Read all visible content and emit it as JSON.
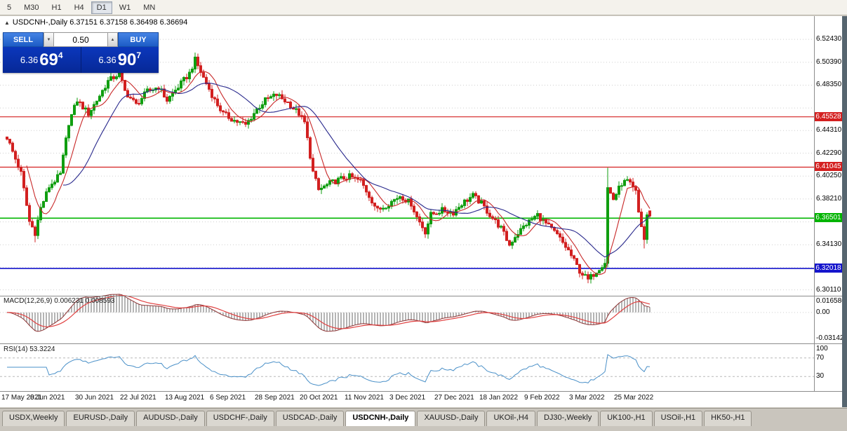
{
  "toolbar": {
    "timeframes": [
      {
        "label": "5"
      },
      {
        "label": "M30"
      },
      {
        "label": "H1"
      },
      {
        "label": "H4"
      },
      {
        "label": "D1",
        "active": true
      },
      {
        "label": "W1"
      },
      {
        "label": "MN"
      }
    ]
  },
  "chart": {
    "title_line": "USDCNH-,Daily  6.37151 6.37158 6.36498 6.36694"
  },
  "icons": {
    "collapse": "▲",
    "volume_down": "▼",
    "volume_up": "▲"
  },
  "trade_panel": {
    "sell_label": "SELL",
    "buy_label": "BUY",
    "volume": "0.50",
    "sell_price": {
      "prefix": "6.36",
      "big": "69",
      "sup": "4"
    },
    "buy_price": {
      "prefix": "6.36",
      "big": "90",
      "sup": "7"
    }
  },
  "tabs": [
    {
      "label": "USDX,Weekly"
    },
    {
      "label": "EURUSD-,Daily"
    },
    {
      "label": "AUDUSD-,Daily"
    },
    {
      "label": "USDCHF-,Daily"
    },
    {
      "label": "USDCAD-,Daily"
    },
    {
      "label": "USDCNH-,Daily",
      "active": true
    },
    {
      "label": "XAUUSD-,Daily"
    },
    {
      "label": "UKOil-,H4"
    },
    {
      "label": "DJ30-,Weekly"
    },
    {
      "label": "UK100-,H1"
    },
    {
      "label": "USOil-,H1"
    },
    {
      "label": "HK50-,H1"
    }
  ],
  "colors": {
    "up": "#109e10",
    "down": "#d22020",
    "ma_fast": "#c82828",
    "ma_slow": "#28288c",
    "macd_hist": "#b4b4b4",
    "macd_main": "#8c3232",
    "macd_signal": "#e04040",
    "rsi": "#4a90c8",
    "grid": "#cfcfcf",
    "separator": "#8c8c8c"
  },
  "chart_data": {
    "type": "candlestick",
    "title": "USDCNH-,Daily",
    "last_ohlc": {
      "open": 6.37151,
      "high": 6.37158,
      "low": 6.36498,
      "close": 6.36694
    },
    "bars": 230,
    "bar_label_step": 16,
    "x_labels": [
      "17 May 2021",
      "8 Jun 2021",
      "30 Jun 2021",
      "22 Jul 2021",
      "13 Aug 2021",
      "6 Sep 2021",
      "28 Sep 2021",
      "20 Oct 2021",
      "11 Nov 2021",
      "3 Dec 2021",
      "27 Dec 2021",
      "18 Jan 2022",
      "9 Feb 2022",
      "3 Mar 2022",
      "25 Mar 2022"
    ],
    "y_range": [
      6.2965,
      6.545
    ],
    "y_grid": [
      6.5243,
      6.5039,
      6.4835,
      6.4631,
      6.4431,
      6.4229,
      6.4025,
      6.3821,
      6.3617,
      6.3413,
      6.3211,
      6.3011
    ],
    "y_tick_labels": [
      6.5243,
      6.5039,
      6.4835,
      6.4431,
      6.4229,
      6.4025,
      6.3821,
      6.3413,
      6.3011
    ],
    "close_anchors": [
      [
        0,
        6.437
      ],
      [
        5,
        6.405
      ],
      [
        8,
        6.362
      ],
      [
        10,
        6.352
      ],
      [
        12,
        6.374
      ],
      [
        15,
        6.393
      ],
      [
        19,
        6.404
      ],
      [
        22,
        6.45
      ],
      [
        25,
        6.47
      ],
      [
        29,
        6.458
      ],
      [
        32,
        6.47
      ],
      [
        36,
        6.487
      ],
      [
        40,
        6.494
      ],
      [
        42,
        6.478
      ],
      [
        46,
        6.466
      ],
      [
        50,
        6.478
      ],
      [
        54,
        6.482
      ],
      [
        57,
        6.47
      ],
      [
        61,
        6.482
      ],
      [
        65,
        6.494
      ],
      [
        67,
        6.506
      ],
      [
        70,
        6.49
      ],
      [
        74,
        6.47
      ],
      [
        77,
        6.458
      ],
      [
        81,
        6.452
      ],
      [
        85,
        6.448
      ],
      [
        89,
        6.462
      ],
      [
        92,
        6.47
      ],
      [
        96,
        6.475
      ],
      [
        100,
        6.468
      ],
      [
        104,
        6.458
      ],
      [
        106,
        6.45
      ],
      [
        109,
        6.406
      ],
      [
        111,
        6.39
      ],
      [
        115,
        6.396
      ],
      [
        119,
        6.4
      ],
      [
        122,
        6.402
      ],
      [
        126,
        6.398
      ],
      [
        129,
        6.385
      ],
      [
        132,
        6.372
      ],
      [
        136,
        6.378
      ],
      [
        140,
        6.385
      ],
      [
        144,
        6.378
      ],
      [
        146,
        6.366
      ],
      [
        149,
        6.353
      ],
      [
        151,
        6.368
      ],
      [
        155,
        6.372
      ],
      [
        159,
        6.37
      ],
      [
        162,
        6.378
      ],
      [
        166,
        6.385
      ],
      [
        169,
        6.378
      ],
      [
        172,
        6.368
      ],
      [
        176,
        6.356
      ],
      [
        179,
        6.341
      ],
      [
        181,
        6.349
      ],
      [
        185,
        6.36
      ],
      [
        189,
        6.368
      ],
      [
        192,
        6.36
      ],
      [
        196,
        6.35
      ],
      [
        200,
        6.336
      ],
      [
        204,
        6.318
      ],
      [
        207,
        6.31
      ],
      [
        210,
        6.318
      ],
      [
        213,
        6.326
      ],
      [
        214,
        6.392
      ],
      [
        216,
        6.382
      ],
      [
        219,
        6.396
      ],
      [
        221,
        6.398
      ],
      [
        224,
        6.388
      ],
      [
        225,
        6.37
      ],
      [
        227,
        6.346
      ],
      [
        228,
        6.368
      ],
      [
        229,
        6.367
      ]
    ],
    "wick_overrides": [
      {
        "bar": 67,
        "high": 6.5125
      },
      {
        "bar": 10,
        "low": 6.3435
      },
      {
        "bar": 214,
        "high": 6.4099
      },
      {
        "bar": 227,
        "low": 6.338
      }
    ],
    "levels": [
      {
        "price": 6.45528,
        "label": "6.45528",
        "color": "#d42020",
        "width": 1.2
      },
      {
        "price": 6.41045,
        "label": "6.41045",
        "color": "#d42020",
        "width": 1.2
      },
      {
        "price": 6.36501,
        "label": "6.36501",
        "color": "#00b400",
        "width": 1.6
      },
      {
        "price": 6.32018,
        "label": "6.32018",
        "color": "#1414cc",
        "width": 1.6
      }
    ],
    "moving_averages": [
      {
        "period": 8,
        "color": "#c82828"
      },
      {
        "period": 21,
        "color": "#28288c"
      }
    ],
    "indicators": {
      "macd": {
        "params": [
          12,
          26,
          9
        ],
        "display": "MACD(12,26,9) 0.006231 0.008593",
        "values": [
          0.006231,
          0.008593
        ],
        "y_ticks": [
          {
            "label": "0.016586",
            "value": 0.0166
          },
          {
            "label": "0.00",
            "value": 0
          },
          {
            "label": "-0.03142",
            "value": -0.0314
          }
        ],
        "y_range": [
          -0.0314,
          0.0166
        ]
      },
      "rsi": {
        "period": 14,
        "value": 53.3224,
        "display": "RSI(14) 53.3224",
        "y_ticks": [
          {
            "label": "100",
            "value": 100
          },
          {
            "label": "70",
            "value": 70
          },
          {
            "label": "30",
            "value": 30
          }
        ],
        "levels": [
          70,
          30
        ]
      }
    }
  }
}
